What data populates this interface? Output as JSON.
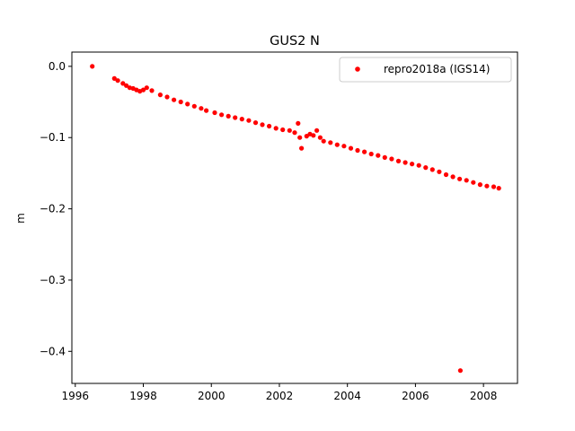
{
  "chart_data": {
    "type": "scatter",
    "title": "GUS2 N",
    "xlabel": "",
    "ylabel": "m",
    "xlim": [
      1995.9,
      2009.0
    ],
    "ylim": [
      -0.445,
      0.02
    ],
    "xticks": [
      1996,
      1998,
      2000,
      2002,
      2004,
      2006,
      2008
    ],
    "xtick_labels": [
      "1996",
      "1998",
      "2000",
      "2002",
      "2004",
      "2006",
      "2008"
    ],
    "yticks": [
      0.0,
      -0.1,
      -0.2,
      -0.3,
      -0.4
    ],
    "ytick_labels": [
      "0.0",
      "−0.1",
      "−0.2",
      "−0.3",
      "−0.4"
    ],
    "grid": false,
    "legend_position": "top-right",
    "series": [
      {
        "name": "repro2018a (IGS14)",
        "color": "#ff0000",
        "marker": "circle",
        "x": [
          1996.5,
          1997.15,
          1997.25,
          1997.4,
          1997.5,
          1997.6,
          1997.7,
          1997.8,
          1997.9,
          1998.0,
          1998.1,
          1998.25,
          1998.5,
          1998.7,
          1998.9,
          1999.1,
          1999.3,
          1999.5,
          1999.7,
          1999.85,
          2000.1,
          2000.3,
          2000.5,
          2000.7,
          2000.9,
          2001.1,
          2001.3,
          2001.5,
          2001.7,
          2001.9,
          2002.1,
          2002.3,
          2002.45,
          2002.55,
          2002.6,
          2002.65,
          2002.8,
          2002.9,
          2003.0,
          2003.1,
          2003.2,
          2003.3,
          2003.5,
          2003.7,
          2003.9,
          2004.1,
          2004.3,
          2004.5,
          2004.7,
          2004.9,
          2005.1,
          2005.3,
          2005.5,
          2005.7,
          2005.9,
          2006.1,
          2006.3,
          2006.5,
          2006.7,
          2006.9,
          2007.1,
          2007.3,
          2007.32,
          2007.5,
          2007.7,
          2007.9,
          2008.1,
          2008.3,
          2008.45
        ],
        "y": [
          0.0,
          -0.017,
          -0.02,
          -0.024,
          -0.027,
          -0.03,
          -0.031,
          -0.033,
          -0.035,
          -0.033,
          -0.03,
          -0.034,
          -0.04,
          -0.043,
          -0.047,
          -0.05,
          -0.053,
          -0.056,
          -0.059,
          -0.062,
          -0.065,
          -0.068,
          -0.07,
          -0.072,
          -0.074,
          -0.076,
          -0.079,
          -0.082,
          -0.084,
          -0.087,
          -0.089,
          -0.09,
          -0.093,
          -0.08,
          -0.1,
          -0.115,
          -0.098,
          -0.095,
          -0.097,
          -0.09,
          -0.1,
          -0.105,
          -0.107,
          -0.11,
          -0.112,
          -0.115,
          -0.118,
          -0.12,
          -0.123,
          -0.125,
          -0.128,
          -0.13,
          -0.133,
          -0.135,
          -0.137,
          -0.139,
          -0.142,
          -0.145,
          -0.148,
          -0.152,
          -0.155,
          -0.158,
          -0.427,
          -0.16,
          -0.163,
          -0.166,
          -0.168,
          -0.169,
          -0.171
        ]
      }
    ]
  }
}
